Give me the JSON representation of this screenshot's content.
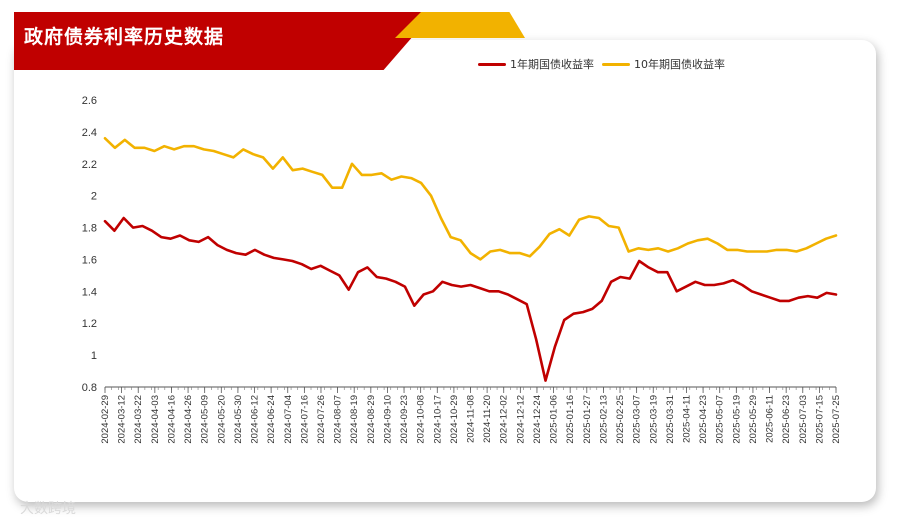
{
  "title": "政府债券利率历史数据",
  "watermark": "大数跨境",
  "colors": {
    "series_1y": "#c00000",
    "series_10y": "#f2b200",
    "banner": "#c00000",
    "accent": "#f2b200"
  },
  "chart_data": {
    "type": "line",
    "title": "政府债券利率历史数据",
    "xlabel": "",
    "ylabel": "",
    "ylim": [
      0.8,
      2.6
    ],
    "yticks": [
      0.8,
      1,
      1.2,
      1.4,
      1.6,
      1.8,
      2,
      2.2,
      2.4,
      2.6
    ],
    "ytick_labels": [
      "0.8",
      "1",
      "1.2",
      "1.4",
      "1.6",
      "1.8",
      "2",
      "2.2",
      "2.4",
      "2.6"
    ],
    "legend": "top-right",
    "grid": false,
    "x_ticks": [
      "2024-02-29",
      "2024-03-12",
      "2024-03-22",
      "2024-04-03",
      "2024-04-16",
      "2024-04-26",
      "2024-05-09",
      "2024-05-20",
      "2024-05-30",
      "2024-06-12",
      "2024-06-24",
      "2024-07-04",
      "2024-07-16",
      "2024-07-26",
      "2024-08-07",
      "2024-08-19",
      "2024-08-29",
      "2024-09-10",
      "2024-09-23",
      "2024-10-08",
      "2024-10-17",
      "2024-10-29",
      "2024-11-08",
      "2024-11-20",
      "2024-12-02",
      "2024-12-12",
      "2024-12-24",
      "2025-01-06",
      "2025-01-16",
      "2025-01-27",
      "2025-02-13",
      "2025-02-25",
      "2025-03-07",
      "2025-03-19",
      "2025-03-31",
      "2025-04-11",
      "2025-04-23",
      "2025-05-07",
      "2025-05-19",
      "2025-05-29",
      "2025-06-11",
      "2025-06-23",
      "2025-07-03",
      "2025-07-15",
      "2025-07-25"
    ],
    "series": [
      {
        "name": "1年期国债收益率",
        "values": [
          1.84,
          1.78,
          1.86,
          1.8,
          1.81,
          1.78,
          1.74,
          1.73,
          1.75,
          1.72,
          1.71,
          1.74,
          1.69,
          1.66,
          1.64,
          1.63,
          1.66,
          1.63,
          1.61,
          1.6,
          1.59,
          1.57,
          1.54,
          1.56,
          1.53,
          1.5,
          1.41,
          1.52,
          1.55,
          1.49,
          1.48,
          1.46,
          1.43,
          1.31,
          1.38,
          1.4,
          1.46,
          1.44,
          1.43,
          1.44,
          1.42,
          1.4,
          1.4,
          1.38,
          1.35,
          1.32,
          1.1,
          0.84,
          1.05,
          1.22,
          1.26,
          1.27,
          1.29,
          1.34,
          1.46,
          1.49,
          1.48,
          1.59,
          1.55,
          1.52,
          1.52,
          1.4,
          1.43,
          1.46,
          1.44,
          1.44,
          1.45,
          1.47,
          1.44,
          1.4,
          1.38,
          1.36,
          1.34,
          1.34,
          1.36,
          1.37,
          1.36,
          1.39,
          1.38
        ]
      },
      {
        "name": "10年期国债收益率",
        "values": [
          2.36,
          2.3,
          2.35,
          2.3,
          2.3,
          2.28,
          2.31,
          2.29,
          2.31,
          2.31,
          2.29,
          2.28,
          2.26,
          2.24,
          2.29,
          2.26,
          2.24,
          2.17,
          2.24,
          2.16,
          2.17,
          2.15,
          2.13,
          2.05,
          2.05,
          2.2,
          2.13,
          2.13,
          2.14,
          2.1,
          2.12,
          2.11,
          2.08,
          2.0,
          1.86,
          1.74,
          1.72,
          1.64,
          1.6,
          1.65,
          1.66,
          1.64,
          1.64,
          1.62,
          1.68,
          1.76,
          1.79,
          1.75,
          1.85,
          1.87,
          1.86,
          1.81,
          1.8,
          1.65,
          1.67,
          1.66,
          1.67,
          1.65,
          1.67,
          1.7,
          1.72,
          1.73,
          1.7,
          1.66,
          1.66,
          1.65,
          1.65,
          1.65,
          1.66,
          1.66,
          1.65,
          1.67,
          1.7,
          1.73,
          1.75
        ]
      }
    ]
  }
}
